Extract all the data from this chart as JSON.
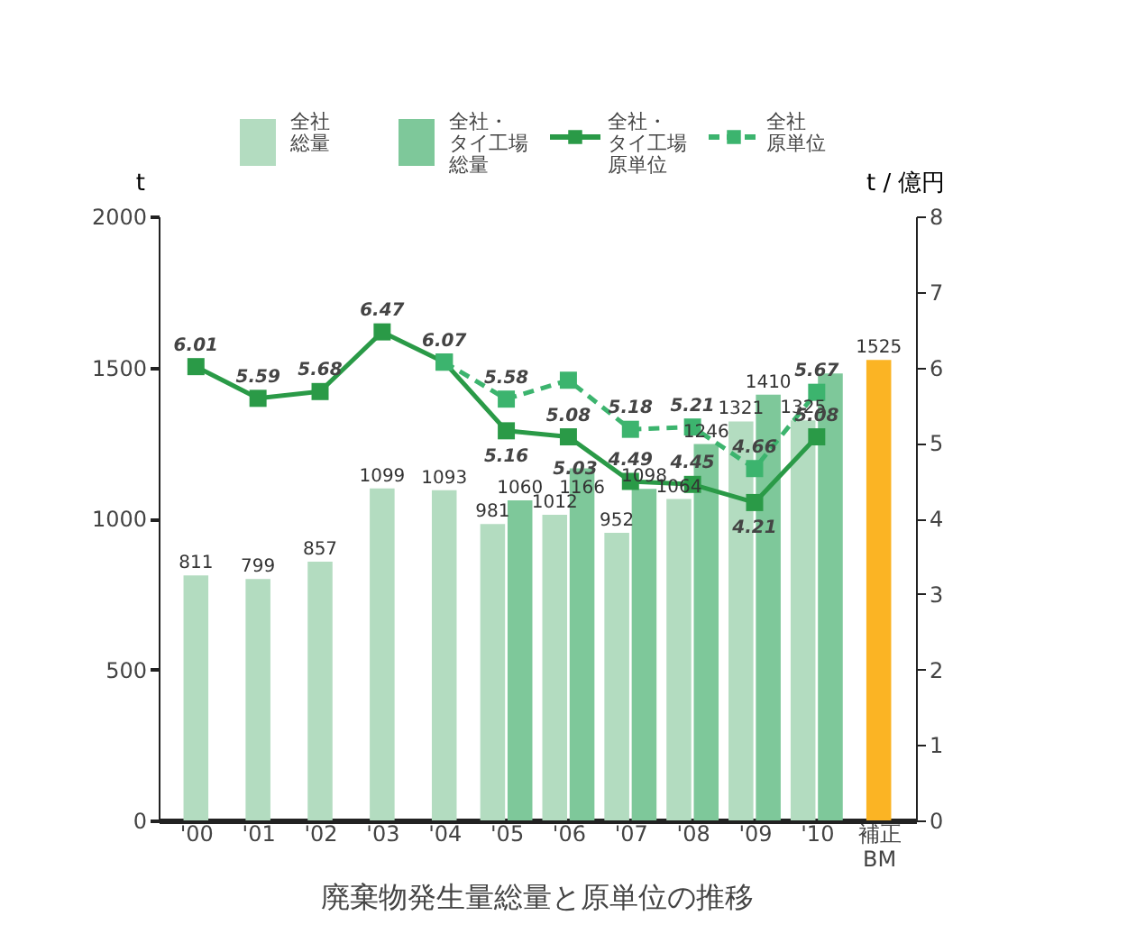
{
  "chart_data": {
    "type": "bar",
    "title": "廃棄物発生量総量と原単位の推移",
    "ylabel": "t",
    "y2label": "t / 億円",
    "categories": [
      "'00",
      "'01",
      "'02",
      "'03",
      "'04",
      "'05",
      "'06",
      "'07",
      "'08",
      "'09",
      "'10",
      "補正\nBM"
    ],
    "series": [
      {
        "name": "全社総量",
        "color": "#b3dcc0",
        "values": [
          811,
          799,
          857,
          1099,
          1093,
          981,
          1012,
          952,
          1064,
          1321,
          1325,
          null
        ],
        "value_labels": [
          "811",
          "799",
          "857",
          "1099",
          "1093",
          "981",
          "1012",
          "952",
          "1064",
          "1321",
          "1325",
          null
        ]
      },
      {
        "name": "全社・タイ工場総量",
        "color": "#7ec89a",
        "values": [
          null,
          null,
          null,
          null,
          null,
          1060,
          1166,
          1098,
          1246,
          1410,
          1480,
          null
        ],
        "value_labels": [
          null,
          null,
          null,
          null,
          null,
          "1060",
          "1166",
          "1098",
          "1246",
          "1410",
          null,
          null
        ]
      },
      {
        "color": "#fbb424",
        "values": [
          null,
          null,
          null,
          null,
          null,
          null,
          null,
          null,
          null,
          null,
          null,
          1525
        ],
        "value_labels": [
          null,
          null,
          null,
          null,
          null,
          null,
          null,
          null,
          null,
          null,
          null,
          "1525"
        ]
      },
      {
        "name": "全社・タイ工場原単位",
        "type": "line",
        "axis": "y2",
        "color": "#2a9a47",
        "line_style": "solid",
        "values": [
          6.01,
          5.59,
          5.68,
          6.47,
          6.07,
          5.16,
          5.08,
          4.49,
          4.45,
          4.21,
          5.08,
          null
        ],
        "value_labels": [
          "6.01",
          "5.59",
          "5.68",
          "6.47",
          "6.07",
          "5.16",
          "5.08",
          "4.49",
          "4.45",
          "4.21",
          "5.08",
          null
        ]
      },
      {
        "name": "全社原単位",
        "type": "line",
        "axis": "y2",
        "color": "#3cb46e",
        "line_style": "dashed",
        "values": [
          null,
          null,
          null,
          null,
          6.07,
          5.58,
          5.83,
          5.18,
          5.21,
          4.66,
          5.67,
          null
        ],
        "value_labels": [
          null,
          null,
          null,
          null,
          null,
          "5.58",
          null,
          "5.18",
          "5.21",
          "4.66",
          "5.67",
          null
        ]
      }
    ],
    "annotations": [
      "5.03"
    ],
    "ylim": [
      0,
      2000
    ],
    "yticks": [
      0,
      500,
      1000,
      1500,
      2000
    ],
    "y2lim": [
      0,
      8
    ],
    "y2ticks": [
      0,
      1,
      2,
      3,
      4,
      5,
      6,
      7,
      8
    ],
    "marker": "square",
    "legend": "top",
    "grid": false
  }
}
